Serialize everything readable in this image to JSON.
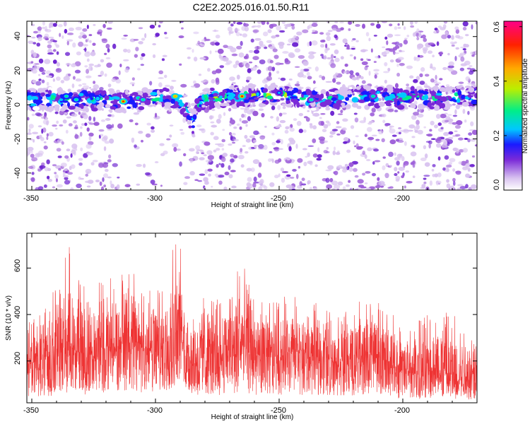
{
  "title": "C2E2.2025.016.01.50.R11",
  "colors": {
    "snr_line": "#ee3333",
    "blob_light": "#d9c3f0",
    "blob_mid": "#9b5bd8",
    "blob_dark": "#6a1fd0"
  },
  "chart_data": [
    {
      "type": "heatmap",
      "title": "C2E2.2025.016.01.50.R11",
      "xlabel": "Height of straight line (km)",
      "ylabel": "Frequency (Hz)",
      "xlim": [
        -352,
        -170
      ],
      "ylim": [
        -50,
        49
      ],
      "x_ticks": [
        -350,
        -300,
        -250,
        -200
      ],
      "x_tick_labels": [
        "-350",
        "-300",
        "-250",
        "-200"
      ],
      "y_ticks": [
        -40,
        -20,
        0,
        20,
        40
      ],
      "y_tick_labels": [
        "-40",
        "-20",
        "0",
        "20",
        "40"
      ],
      "colorbar": {
        "label": "Normalized spectral amplitude",
        "range": [
          0.0,
          0.62
        ],
        "ticks": [
          0.0,
          0.2,
          0.4,
          0.6
        ],
        "tick_labels": [
          "0.0",
          "0.2",
          "0.4",
          "0.6"
        ],
        "colors": [
          "#ffffff",
          "#d9c3f0",
          "#7a2ad8",
          "#1a1aff",
          "#00c8ff",
          "#00ee88",
          "#bbee00",
          "#ffaa00",
          "#ff2200",
          "#ff0088"
        ]
      },
      "ridge": {
        "freq_hz": [
          [
            -350,
            3
          ],
          [
            -335,
            3
          ],
          [
            -320,
            3
          ],
          [
            -312,
            2
          ],
          [
            -300,
            4
          ],
          [
            -292,
            4
          ],
          [
            -288,
            0
          ],
          [
            -285,
            -12
          ],
          [
            -282,
            3
          ],
          [
            -265,
            5
          ],
          [
            -250,
            6
          ],
          [
            -235,
            3
          ],
          [
            -220,
            4
          ],
          [
            -210,
            5
          ],
          [
            -200,
            4
          ],
          [
            -185,
            4
          ],
          [
            -170,
            5
          ]
        ],
        "peaks": [
          {
            "x": -313,
            "y": 2,
            "amp": 0.6
          },
          {
            "x": -265,
            "y": 5,
            "amp": 0.6
          },
          {
            "x": -292,
            "y": 5,
            "amp": 0.55
          },
          {
            "x": -336,
            "y": 5,
            "amp": 0.4
          },
          {
            "x": -332,
            "y": 3,
            "amp": 0.4
          },
          {
            "x": -307,
            "y": 4,
            "amp": 0.35
          },
          {
            "x": -305,
            "y": 3,
            "amp": 0.35
          },
          {
            "x": -237,
            "y": 3,
            "amp": 0.35
          },
          {
            "x": -212,
            "y": 5,
            "amp": 0.35
          },
          {
            "x": -250,
            "y": 7,
            "amp": 0.3
          }
        ]
      }
    },
    {
      "type": "line",
      "xlabel": "Height of straight line (km)",
      "ylabel": "SNR (10 * v/v)",
      "xlim": [
        -352,
        -170
      ],
      "ylim": [
        20,
        750
      ],
      "x_ticks": [
        -350,
        -300,
        -250,
        -200
      ],
      "x_tick_labels": [
        "-350",
        "-300",
        "-250",
        "-200"
      ],
      "y_ticks": [
        200,
        400,
        600
      ],
      "y_tick_labels": [
        "200",
        "400",
        "600"
      ],
      "envelope": {
        "x": [
          -352,
          -345,
          -338,
          -335,
          -330,
          -325,
          -320,
          -315,
          -312,
          -308,
          -303,
          -298,
          -295,
          -292,
          -290,
          -288,
          -285,
          -280,
          -272,
          -266,
          -260,
          -252,
          -245,
          -238,
          -232,
          -228,
          -220,
          -212,
          -205,
          -200,
          -195,
          -188,
          -180,
          -170
        ],
        "center": [
          170,
          190,
          215,
          250,
          220,
          205,
          235,
          240,
          290,
          250,
          235,
          220,
          280,
          320,
          345,
          210,
          185,
          210,
          200,
          250,
          205,
          210,
          230,
          195,
          220,
          185,
          200,
          215,
          190,
          140,
          135,
          155,
          130,
          135
        ],
        "peak": [
          360,
          420,
          620,
          700,
          560,
          540,
          590,
          520,
          680,
          610,
          600,
          520,
          620,
          750,
          700,
          480,
          420,
          530,
          520,
          660,
          480,
          470,
          500,
          430,
          470,
          400,
          450,
          470,
          430,
          360,
          370,
          430,
          420,
          330
        ]
      }
    }
  ]
}
